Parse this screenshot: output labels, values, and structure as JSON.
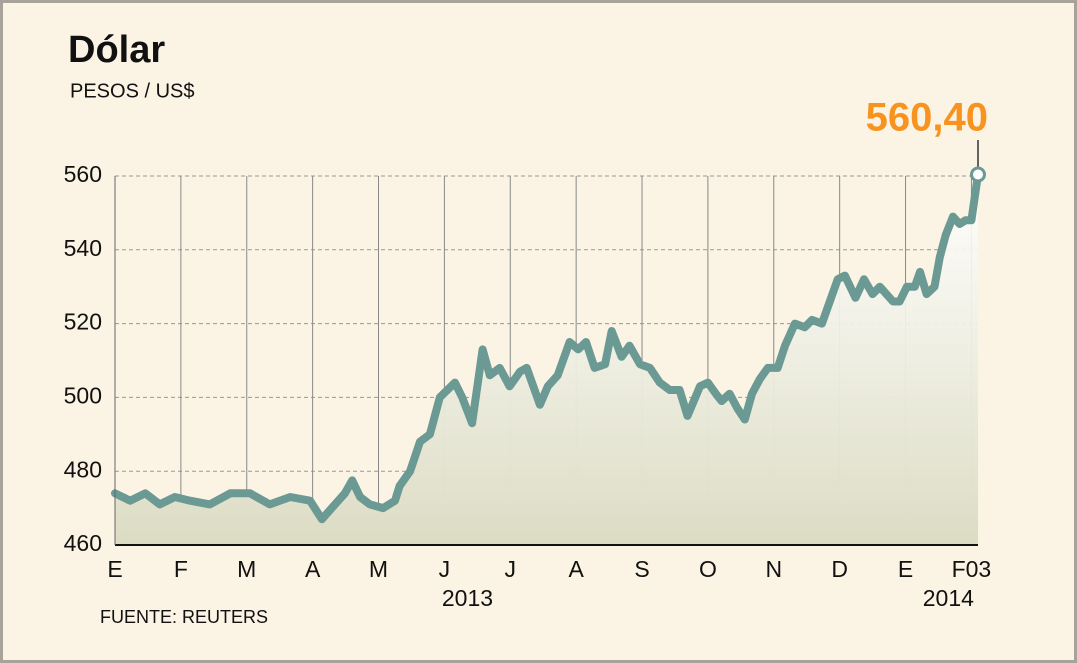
{
  "chart_data": {
    "type": "line",
    "title": "Dólar",
    "subtitle": "PESOS / US$",
    "source": "FUENTE: REUTERS",
    "year_labels": [
      "2013",
      "2014"
    ],
    "color": "#6b9994",
    "grid": true,
    "xlim": [
      0,
      13.1
    ],
    "xticks": [
      {
        "value": 0,
        "label": "E"
      },
      {
        "value": 1,
        "label": "F"
      },
      {
        "value": 2,
        "label": "M"
      },
      {
        "value": 3,
        "label": "A"
      },
      {
        "value": 4,
        "label": "M"
      },
      {
        "value": 5,
        "label": "J"
      },
      {
        "value": 6,
        "label": "J"
      },
      {
        "value": 7,
        "label": "A"
      },
      {
        "value": 8,
        "label": "S"
      },
      {
        "value": 9,
        "label": "O"
      },
      {
        "value": 10,
        "label": "N"
      },
      {
        "value": 11,
        "label": "D"
      },
      {
        "value": 12,
        "label": "E"
      },
      {
        "value": 13,
        "label": "F03"
      }
    ],
    "ylim": [
      460,
      560
    ],
    "yticks": [
      460,
      480,
      500,
      520,
      540,
      560
    ],
    "x": [
      0,
      0.23,
      0.46,
      0.68,
      0.91,
      1.14,
      1.44,
      1.75,
      2.05,
      2.35,
      2.66,
      2.96,
      3.14,
      3.34,
      3.49,
      3.6,
      3.72,
      3.87,
      4.07,
      4.25,
      4.32,
      4.48,
      4.63,
      4.78,
      4.93,
      5.16,
      5.27,
      5.42,
      5.58,
      5.69,
      5.84,
      5.99,
      6.15,
      6.25,
      6.45,
      6.57,
      6.72,
      6.9,
      7.03,
      7.15,
      7.28,
      7.44,
      7.54,
      7.69,
      7.81,
      7.97,
      8.12,
      8.27,
      8.42,
      8.57,
      8.69,
      8.88,
      9.0,
      9.12,
      9.21,
      9.33,
      9.45,
      9.56,
      9.67,
      9.79,
      9.91,
      10.06,
      10.17,
      10.32,
      10.47,
      10.58,
      10.73,
      10.85,
      10.97,
      11.08,
      11.24,
      11.37,
      11.5,
      11.61,
      11.81,
      11.91,
      12.02,
      12.14,
      12.22,
      12.32,
      12.44,
      12.52,
      12.61,
      12.72,
      12.82,
      12.91,
      13.0,
      13.1
    ],
    "values": [
      474,
      472,
      474,
      471,
      473,
      472,
      471,
      474,
      474,
      471,
      473,
      472,
      467,
      471,
      474,
      477.5,
      473,
      471,
      470,
      472,
      476,
      480,
      488,
      490,
      500,
      504,
      500,
      493,
      513,
      506,
      508,
      503,
      507,
      508,
      498,
      503,
      506,
      515,
      513,
      515,
      508,
      509,
      518,
      511,
      514,
      509,
      508,
      504,
      502,
      502,
      495,
      503,
      504,
      501,
      499,
      501,
      497,
      494,
      501,
      505,
      508,
      508,
      514,
      520,
      519,
      521,
      520,
      526,
      532,
      533,
      527,
      532,
      528,
      530,
      526,
      526,
      530,
      530,
      534,
      528,
      530,
      538,
      544,
      549,
      547,
      548,
      548,
      560.4
    ],
    "value_labels": [
      null,
      null,
      null,
      null,
      null,
      null,
      null,
      null,
      null,
      null,
      null,
      null,
      null,
      null,
      null,
      null,
      null,
      null,
      null,
      null,
      null,
      null,
      null,
      null,
      null,
      null,
      null,
      null,
      null,
      null,
      null,
      null,
      null,
      null,
      null,
      null,
      null,
      null,
      null,
      null,
      null,
      null,
      null,
      null,
      null,
      null,
      null,
      null,
      null,
      null,
      null,
      null,
      null,
      null,
      null,
      null,
      null,
      null,
      null,
      null,
      null,
      null,
      null,
      null,
      null,
      null,
      null,
      null,
      null,
      null,
      null,
      null,
      null,
      null,
      null,
      null,
      null,
      null,
      null,
      null,
      null,
      null,
      null,
      null,
      null,
      null,
      null,
      "560,40"
    ],
    "label_color": "#f7931e"
  }
}
